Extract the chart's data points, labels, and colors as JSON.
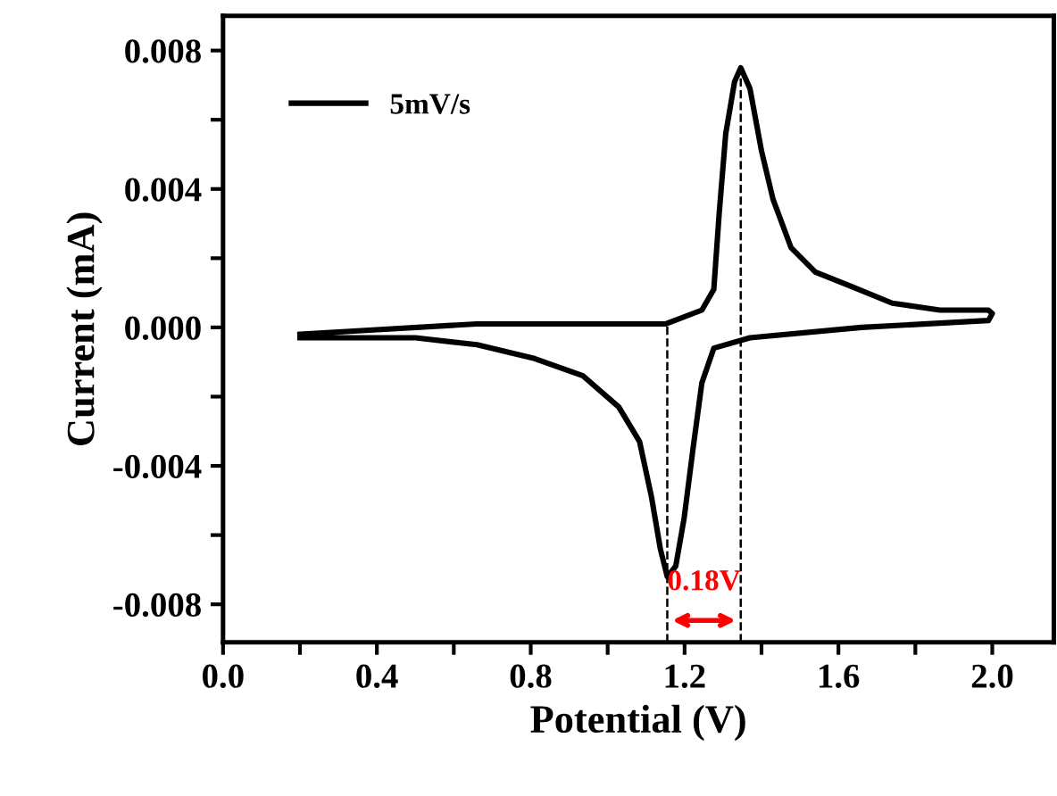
{
  "chart_data": {
    "type": "line",
    "xlabel": "Potential (V)",
    "ylabel": "Current (mA)",
    "xlim": [
      0,
      2.16
    ],
    "ylim": [
      -0.0091,
      0.009
    ],
    "xticks": [
      {
        "value": 0,
        "label": "0.0"
      },
      {
        "value": 0.2,
        "label": null
      },
      0.4,
      {
        "value": 0.6,
        "label": null
      },
      0.8,
      {
        "value": 1.0,
        "label": null
      },
      1.2,
      {
        "value": 1.4,
        "label": null
      },
      1.6,
      {
        "value": 1.8,
        "label": null
      },
      {
        "value": 2,
        "label": "2.0"
      }
    ],
    "yticks": [
      {
        "value": -0.008,
        "label": "-0.008"
      },
      {
        "value": -0.006,
        "label": null
      },
      {
        "value": -0.004,
        "label": "-0.004"
      },
      {
        "value": -0.002,
        "label": null
      },
      {
        "value": 0,
        "label": "0.000"
      },
      {
        "value": 0.002,
        "label": null
      },
      0.004,
      {
        "value": 0.006,
        "label": null
      },
      0.008
    ],
    "series": [
      {
        "name": "5mV/s",
        "color": "#000000",
        "x": [
          0.2,
          0.35,
          0.66,
          0.97,
          1.15,
          1.245,
          1.276,
          1.29,
          1.307,
          1.33,
          1.346,
          1.37,
          1.4,
          1.43,
          1.477,
          1.54,
          1.63,
          1.74,
          1.864,
          1.99,
          2.0,
          1.99,
          1.66,
          1.37,
          1.276,
          1.245,
          1.222,
          1.199,
          1.177,
          1.155,
          1.137,
          1.114,
          1.083,
          1.029,
          0.936,
          0.81,
          0.66,
          0.5,
          0.35,
          0.2
        ],
        "values": [
          -0.0002,
          -0.0001,
          0.0001,
          0.0001,
          0.0001,
          0.0005,
          0.0011,
          0.0033,
          0.0056,
          0.0071,
          0.0075,
          0.0069,
          0.0051,
          0.0037,
          0.0023,
          0.0016,
          0.0012,
          0.0007,
          0.0005,
          0.0005,
          0.0004,
          0.0002,
          0.0,
          -0.0003,
          -0.0006,
          -0.0016,
          -0.0035,
          -0.0055,
          -0.0069,
          -0.0072,
          -0.0064,
          -0.0049,
          -0.0033,
          -0.0023,
          -0.0014,
          -0.0009,
          -0.0005,
          -0.0003,
          -0.0003,
          -0.0003
        ]
      }
    ],
    "ref_lines": [
      {
        "axis": "x",
        "value": 1.155,
        "color": "#000000",
        "line_style": "dashed"
      },
      {
        "axis": "x",
        "value": 1.346,
        "color": "#000000",
        "line_style": "dashed"
      }
    ],
    "annotations": [
      "0.18V"
    ],
    "legend": "top left",
    "grid": false,
    "marker": "none",
    "line_style": "solid"
  }
}
